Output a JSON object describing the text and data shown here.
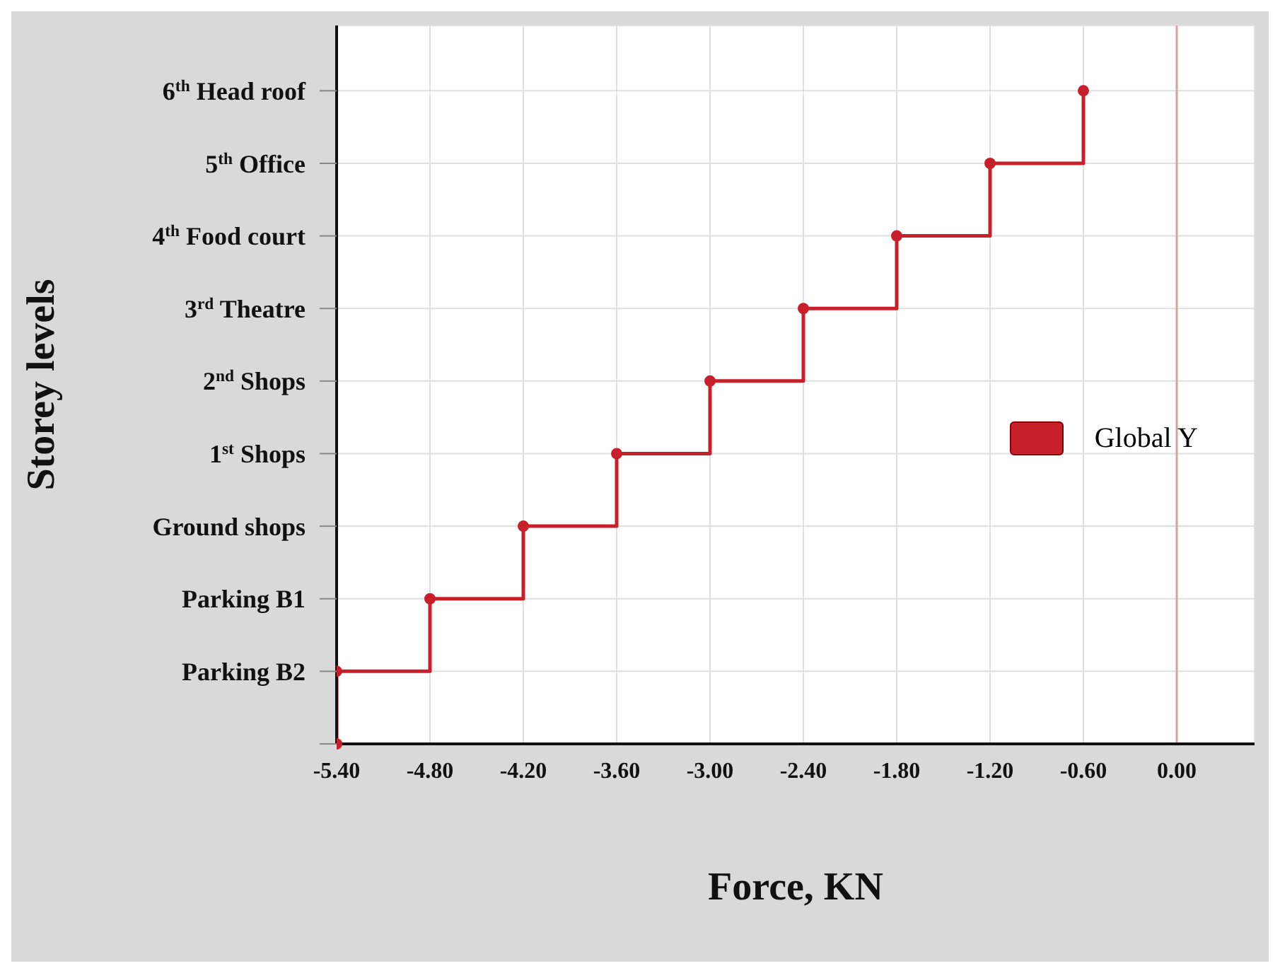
{
  "chart_data": {
    "type": "step",
    "orientation": "horizontal",
    "xlabel": "Force, KN",
    "ylabel": "Storey levels",
    "categories": [
      "6$^{th}$ Head roof",
      "5$^{th}$ Office",
      "4$^{th}$ Food court",
      "3$^{rd}$ Theatre",
      "2$^{nd}$ Shops",
      "1$^{st}$ Shops",
      "Ground shops",
      "Parking B1",
      "Parking B2",
      null
    ],
    "xlim": [
      -5.4,
      0.5
    ],
    "xticks": [
      {
        "value": -5.4,
        "label": "-5.40"
      },
      {
        "value": -4.8,
        "label": "-4.80"
      },
      {
        "value": -4.2,
        "label": "-4.20"
      },
      {
        "value": -3.6,
        "label": "-3.60"
      },
      {
        "value": -3.0,
        "label": "-3.00"
      },
      {
        "value": -2.4,
        "label": "-2.40"
      },
      {
        "value": -1.8,
        "label": "-1.80"
      },
      {
        "value": -1.2,
        "label": "-1.20"
      },
      {
        "value": -0.6,
        "label": "-0.60"
      },
      {
        "value": 0,
        "label": "0.00"
      }
    ],
    "series": [
      {
        "name": "Global Y",
        "color": "#c8202a",
        "values": [
          -0.6,
          -1.2,
          -1.8,
          -2.4,
          -3.0,
          -3.6,
          -4.2,
          -4.8,
          -5.4,
          -5.4
        ]
      }
    ],
    "ref_lines": [
      {
        "axis": "x",
        "value": 0,
        "color": "#d9a0a0"
      }
    ],
    "marker": "circle",
    "grid": true,
    "legend": "right"
  }
}
